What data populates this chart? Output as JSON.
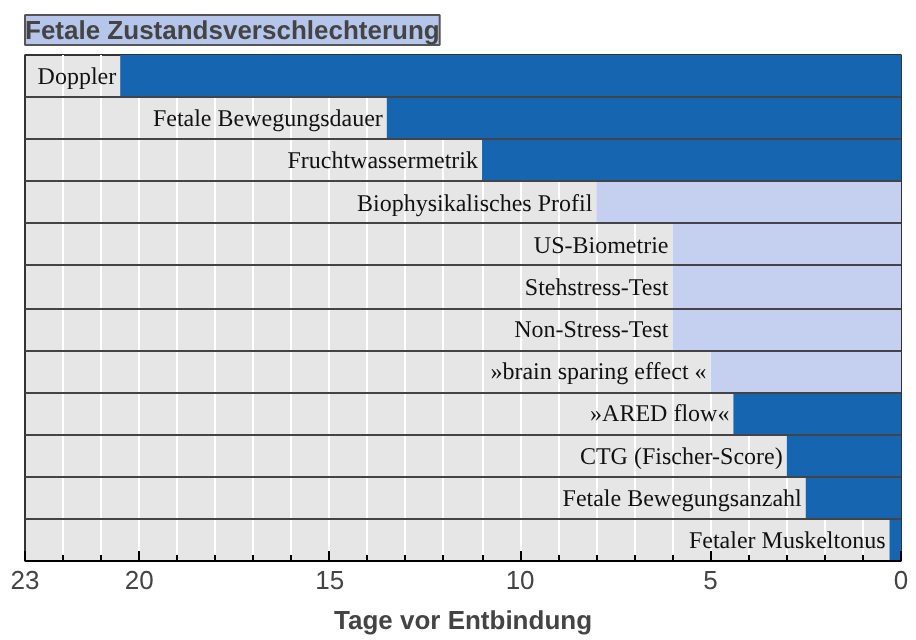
{
  "chart_data": {
    "type": "bar",
    "orientation": "horizontal",
    "title": "Fetale Zustandsverschlechterung",
    "xlabel": "Tage vor Entbindung",
    "categories": [
      "Doppler",
      "Fetale Bewegungsdauer",
      "Fruchtwassermetrik",
      "Biophysikalisches Profil",
      "US-Biometrie",
      "Stehstress-Test",
      "Non-Stress-Test",
      "»brain sparing effect «",
      "»ARED flow«",
      "CTG (Fischer-Score)",
      "Fetale Bewegungsanzahl",
      "Fetaler Muskeltonus"
    ],
    "values": [
      20.5,
      13.5,
      11,
      8,
      6,
      6,
      6,
      5,
      4.4,
      3,
      2.5,
      0.3
    ],
    "colors": [
      "#1565b0",
      "#1565b0",
      "#1565b0",
      "#c5cff0",
      "#c5cff0",
      "#c5cff0",
      "#c5cff0",
      "#c5cff0",
      "#1565b0",
      "#1565b0",
      "#1565b0",
      "#1565b0"
    ],
    "xlim": [
      23,
      0
    ],
    "xticks": [
      23,
      20,
      15,
      10,
      5,
      0
    ],
    "grid": "x"
  }
}
